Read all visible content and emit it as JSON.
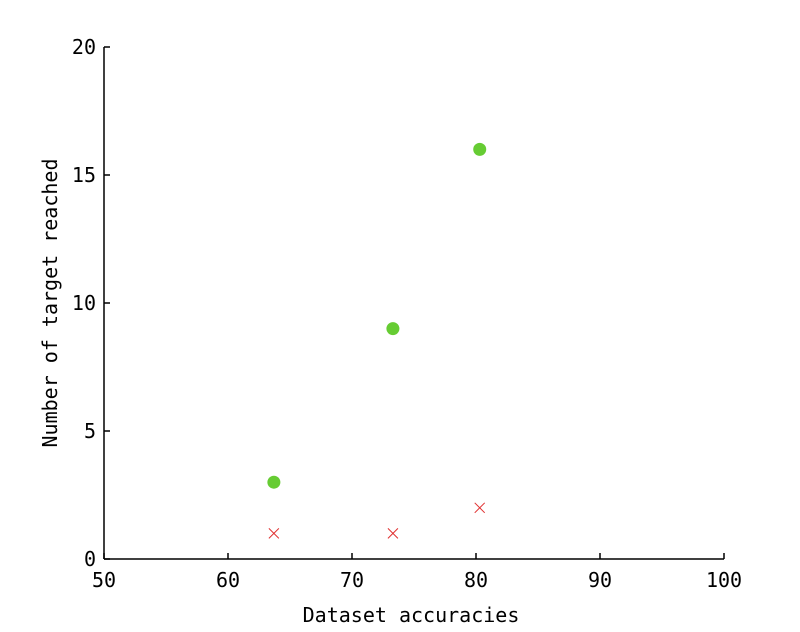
{
  "chart_data": {
    "type": "scatter",
    "title": "",
    "xlabel": "Dataset accuracies",
    "ylabel": "Number of target reached",
    "xlim": [
      50,
      100
    ],
    "ylim": [
      0,
      20
    ],
    "xticks": [
      50,
      60,
      70,
      80,
      90,
      100
    ],
    "yticks": [
      0,
      5,
      10,
      15,
      20
    ],
    "grid": false,
    "series": [
      {
        "marker": "circle",
        "color": "#66cc33",
        "x": [
          63.7,
          73.3,
          80.3
        ],
        "y": [
          3,
          9,
          16
        ]
      },
      {
        "marker": "x",
        "color": "#e03030",
        "x": [
          63.7,
          73.3,
          80.3
        ],
        "y": [
          1,
          1,
          2
        ]
      }
    ]
  }
}
